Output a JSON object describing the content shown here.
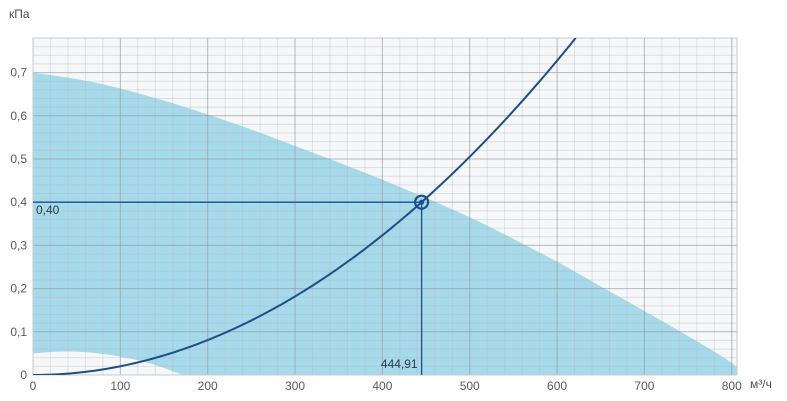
{
  "chart_data": {
    "type": "area",
    "title": "",
    "xlabel": "м³/ч",
    "ylabel": "кПа",
    "xlim": [
      0,
      806
    ],
    "ylim": [
      0,
      0.78
    ],
    "x_ticks": [
      0,
      100,
      200,
      300,
      400,
      500,
      600,
      700,
      800
    ],
    "x_tick_labels": [
      "0",
      "100",
      "200",
      "300",
      "400",
      "500",
      "600",
      "700",
      "800"
    ],
    "y_ticks": [
      0,
      0.1,
      0.2,
      0.3,
      0.4,
      0.5,
      0.6,
      0.7
    ],
    "y_tick_labels": [
      "0",
      "0,1",
      "0,2",
      "0,3",
      "0,4",
      "0,5",
      "0,6",
      "0,7"
    ],
    "x_minor_step": 20,
    "y_minor_step": 0.02,
    "grid": true,
    "legend": false,
    "operating_area": {
      "name": "fan-operating-range",
      "fill": "#a6d9e9",
      "upper_boundary": [
        [
          0,
          0.7
        ],
        [
          50,
          0.685
        ],
        [
          100,
          0.663
        ],
        [
          150,
          0.635
        ],
        [
          200,
          0.603
        ],
        [
          250,
          0.568
        ],
        [
          300,
          0.53
        ],
        [
          350,
          0.492
        ],
        [
          400,
          0.452
        ],
        [
          450,
          0.41
        ],
        [
          500,
          0.365
        ],
        [
          550,
          0.315
        ],
        [
          600,
          0.262
        ],
        [
          650,
          0.205
        ],
        [
          700,
          0.148
        ],
        [
          750,
          0.09
        ],
        [
          800,
          0.028
        ],
        [
          810,
          0
        ]
      ],
      "lower_boundary_notch": [
        [
          0,
          0.05
        ],
        [
          30,
          0.054
        ],
        [
          60,
          0.053
        ],
        [
          90,
          0.046
        ],
        [
          120,
          0.034
        ],
        [
          145,
          0.02
        ],
        [
          165,
          0.005
        ],
        [
          172,
          0
        ]
      ]
    },
    "system_curve": {
      "name": "system-resistance-curve",
      "shape": "quadratic-through-operating-point",
      "color": "#1d4e89",
      "width": 2
    },
    "operating_point": {
      "x": 444.91,
      "y": 0.4,
      "x_label": "444,91",
      "y_label": "0,40",
      "color": "#1d4e89"
    },
    "colors": {
      "plot_bg": "#f6f7f8",
      "grid_minor": "#aeb4ba",
      "grid_major": "#878f96",
      "border": "#c6cacd",
      "tick_text": "#55595e",
      "value_text": "#2b3a4a"
    }
  }
}
